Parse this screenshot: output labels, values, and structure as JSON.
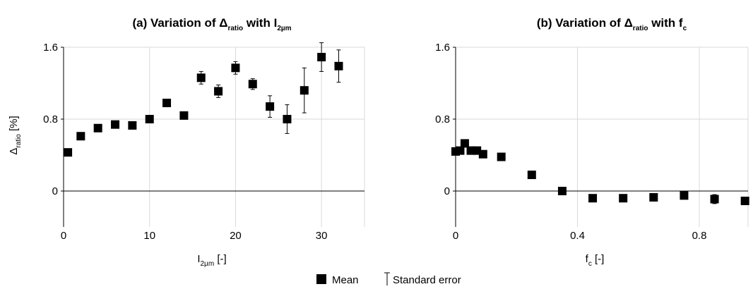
{
  "chart_data": [
    {
      "type": "scatter",
      "title": {
        "main": "(a) Variation of Δ",
        "sub": "ratio",
        "mid": " with I",
        "sub2": "2µm"
      },
      "xlabel": {
        "main": "I",
        "sub": "2µm",
        "rest": " [-]"
      },
      "ylabel": {
        "main": "Δ",
        "sub": "ratio",
        "rest": " [%]"
      },
      "xlim": [
        0,
        35
      ],
      "ylim": [
        -0.4,
        1.6
      ],
      "xticks": [
        0,
        10,
        20,
        30
      ],
      "xtick_labels": [
        "0",
        "10",
        "20",
        "30"
      ],
      "yticks": [
        0,
        0.8,
        1.6
      ],
      "ytick_labels": [
        "0",
        "0.8",
        "1.6"
      ],
      "grid": true,
      "series": [
        {
          "name": "Mean",
          "x": [
            0.5,
            2,
            4,
            6,
            8,
            10,
            12,
            14,
            16,
            18,
            20,
            22,
            24,
            26,
            28,
            30,
            32
          ],
          "y": [
            0.43,
            0.61,
            0.7,
            0.74,
            0.73,
            0.8,
            0.98,
            0.84,
            1.26,
            1.11,
            1.37,
            1.19,
            0.94,
            0.8,
            1.12,
            1.49,
            1.39
          ],
          "error": [
            0.02,
            0.02,
            0.02,
            0.02,
            0.02,
            0.03,
            0.04,
            0.04,
            0.07,
            0.07,
            0.07,
            0.06,
            0.12,
            0.16,
            0.25,
            0.16,
            0.18
          ]
        }
      ]
    },
    {
      "type": "scatter",
      "title": {
        "main": "(b) Variation of Δ",
        "sub": "ratio",
        "mid": " with f",
        "sub2": "c"
      },
      "xlabel": {
        "main": "f",
        "sub": "c",
        "rest": " [-]"
      },
      "xlim": [
        0,
        0.96
      ],
      "ylim": [
        -0.4,
        1.6
      ],
      "xticks": [
        0,
        0.4,
        0.8
      ],
      "xtick_labels": [
        "0",
        "0.4",
        "0.8"
      ],
      "yticks": [
        0,
        0.8,
        1.6
      ],
      "ytick_labels": [
        "0",
        "0.8",
        "1.6"
      ],
      "grid": true,
      "series": [
        {
          "name": "Mean",
          "x": [
            0.0,
            0.015,
            0.03,
            0.05,
            0.07,
            0.09,
            0.15,
            0.25,
            0.35,
            0.45,
            0.55,
            0.65,
            0.75,
            0.85,
            0.95
          ],
          "y": [
            0.44,
            0.45,
            0.53,
            0.45,
            0.45,
            0.41,
            0.38,
            0.18,
            0.0,
            -0.08,
            -0.08,
            -0.07,
            -0.05,
            -0.09,
            -0.11
          ],
          "error": [
            0.02,
            0.02,
            0.02,
            0.02,
            0.02,
            0.02,
            0.02,
            0.02,
            0.02,
            0.02,
            0.02,
            0.02,
            0.04,
            0.05,
            0.02
          ]
        }
      ]
    }
  ],
  "legend": {
    "placement": "bottom-center",
    "items": [
      {
        "label": "Mean",
        "marker": "square"
      },
      {
        "label": "Standard error",
        "marker": "error-bar"
      }
    ]
  },
  "colors": {
    "marker": "#000000",
    "grid": "#d9d9d9",
    "axis": "#000000"
  }
}
